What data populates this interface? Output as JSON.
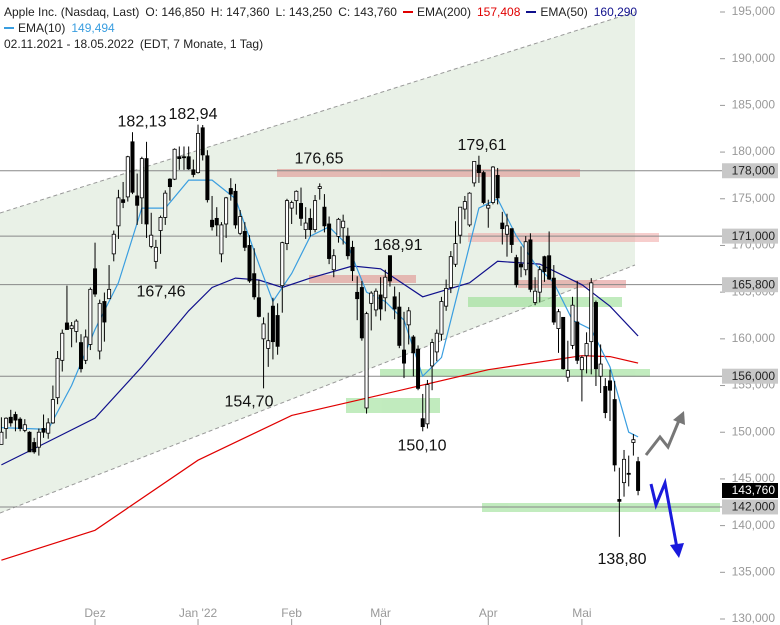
{
  "chart_data": {
    "type": "candlestick",
    "title": "Apple Inc. (Nasdaq, Last)",
    "ohlc_text": [
      "O: 146,850",
      "H: 147,360",
      "L: 143,250",
      "C: 143,760"
    ],
    "subtitle": "02.11.2021 - 18.05.2022",
    "info": "(EDT, 7 Monate, 1 Tag)",
    "xlim": [
      -0.3,
      153.5
    ],
    "xticks": [
      {
        "value": 20,
        "label": "Dez"
      },
      {
        "value": 42,
        "label": "Jan '22"
      },
      {
        "value": 62,
        "label": "Feb"
      },
      {
        "value": 81,
        "label": "Mär"
      },
      {
        "value": 104,
        "label": "Apr"
      },
      {
        "value": 124,
        "label": "Mai"
      }
    ],
    "ylim": [
      130,
      195
    ],
    "yticks": [
      {
        "value": 130,
        "label": "130,000"
      },
      {
        "value": 135,
        "label": "135,000"
      },
      {
        "value": 140,
        "label": "140,000"
      },
      {
        "value": 145,
        "label": "145,000"
      },
      {
        "value": 150,
        "label": "150,000"
      },
      {
        "value": 155,
        "label": "155,000"
      },
      {
        "value": 160,
        "label": "160,000"
      },
      {
        "value": 165,
        "label": "165,000"
      },
      {
        "value": 170,
        "label": "170,000"
      },
      {
        "value": 175,
        "label": "175,000"
      },
      {
        "value": 180,
        "label": "180,000"
      },
      {
        "value": 185,
        "label": "185,000"
      },
      {
        "value": 190,
        "label": "190,000"
      },
      {
        "value": 195,
        "label": "195,000"
      }
    ],
    "levels": [
      {
        "value": 178,
        "label": "178,000"
      },
      {
        "value": 171,
        "label": "171,000"
      },
      {
        "value": 165.8,
        "label": "165,800"
      },
      {
        "value": 156,
        "label": "156,000"
      },
      {
        "value": 142,
        "label": "142,000"
      }
    ],
    "last_price": {
      "value": 143.76,
      "label": "143,760"
    },
    "annotations": [
      {
        "value": 182.13,
        "label": "182,13"
      },
      {
        "value": 182.94,
        "label": "182,94"
      },
      {
        "value": 176.65,
        "label": "176,65"
      },
      {
        "value": 179.61,
        "label": "179,61"
      },
      {
        "value": 168.91,
        "label": "168,91"
      },
      {
        "value": 167.46,
        "label": "167,46"
      },
      {
        "value": 154.7,
        "label": "154,70"
      },
      {
        "value": 150.1,
        "label": "150,10"
      },
      {
        "value": 138.8,
        "label": "138,80"
      }
    ],
    "series": [
      {
        "name": "EMA(200)",
        "color": "#e00000",
        "last": "157,408",
        "x": [
          0,
          20,
          42,
          62,
          81,
          104,
          124,
          130,
          136
        ],
        "values": [
          136.3,
          139.5,
          147,
          151.8,
          154,
          156.7,
          158.2,
          158.1,
          157.4
        ]
      },
      {
        "name": "EMA(50)",
        "color": "#10108c",
        "last": "160,290",
        "x": [
          0,
          10,
          20,
          30,
          40,
          45,
          50,
          55,
          60,
          66,
          75,
          81,
          90,
          100,
          106,
          115,
          124,
          130,
          136
        ],
        "values": [
          146.5,
          149,
          151.5,
          157,
          163,
          165.5,
          166.5,
          166.3,
          165.5,
          166.5,
          167.8,
          167.5,
          164.5,
          166,
          168.3,
          168,
          165.8,
          163.5,
          160.3
        ]
      },
      {
        "name": "EMA(10)",
        "color": "#3a9ee0",
        "last": "149,494",
        "x": [
          0,
          10,
          15,
          20,
          25,
          30,
          35,
          40,
          45,
          50,
          55,
          58,
          62,
          66,
          70,
          74,
          78,
          82,
          86,
          90,
          94,
          98,
          102,
          106,
          110,
          114,
          118,
          122,
          126,
          130,
          134,
          136
        ],
        "values": [
          150.5,
          150.3,
          155,
          161,
          166,
          174,
          174,
          177,
          177,
          175,
          168,
          164,
          167,
          171,
          172,
          170,
          165,
          164,
          162,
          156,
          158,
          166,
          174,
          175,
          171,
          168,
          166,
          162,
          161,
          157,
          150,
          149.5
        ]
      }
    ],
    "candles": [
      [
        148.7,
        151.6,
        148.7,
        150.0
      ],
      [
        150.4,
        151.6,
        149.3,
        151.5
      ],
      [
        151.6,
        152.4,
        150.6,
        151.0
      ],
      [
        151.9,
        152.2,
        150.1,
        151.3
      ],
      [
        151.4,
        151.6,
        150.1,
        150.4
      ],
      [
        150.2,
        151.4,
        150.0,
        150.8
      ],
      [
        150.0,
        150.1,
        147.9,
        147.9
      ],
      [
        148.9,
        149.4,
        147.7,
        147.9
      ],
      [
        148.4,
        150.4,
        147.5,
        150.0
      ],
      [
        150.4,
        151.9,
        149.4,
        150.0
      ],
      [
        149.9,
        151.5,
        149.3,
        151.0
      ],
      [
        151.0,
        155.0,
        150.9,
        153.5
      ],
      [
        153.7,
        158.7,
        153.0,
        157.9
      ],
      [
        157.7,
        161.0,
        156.5,
        160.6
      ],
      [
        161.7,
        165.7,
        161.0,
        161.0
      ],
      [
        161.1,
        161.8,
        159.1,
        161.4
      ],
      [
        160.8,
        162.1,
        159.6,
        161.9
      ],
      [
        159.6,
        160.5,
        156.4,
        156.8
      ],
      [
        157.7,
        161.0,
        157.3,
        160.2
      ],
      [
        159.4,
        165.5,
        158.8,
        165.3
      ],
      [
        167.5,
        170.3,
        164.5,
        164.8
      ],
      [
        158.7,
        164.2,
        157.8,
        163.8
      ],
      [
        164.0,
        164.96,
        159.7,
        161.8
      ],
      [
        164.3,
        167.9,
        164.3,
        165.3
      ],
      [
        169.1,
        171.6,
        168.3,
        171.2
      ],
      [
        172.1,
        175.96,
        170.7,
        175.1
      ],
      [
        174.9,
        176.8,
        174.0,
        174.6
      ],
      [
        175.2,
        179.6,
        174.7,
        179.5
      ],
      [
        181.1,
        182.13,
        175.5,
        175.7
      ],
      [
        175.3,
        177.7,
        172.2,
        174.3
      ],
      [
        175.1,
        179.5,
        172.3,
        179.3
      ],
      [
        179.3,
        181.1,
        170.8,
        172.3
      ],
      [
        169.9,
        173.5,
        169.7,
        171.1
      ],
      [
        168.3,
        170.6,
        167.5,
        169.8
      ],
      [
        171.6,
        173.2,
        169.1,
        173.0
      ],
      [
        173.0,
        175.9,
        172.2,
        175.6
      ],
      [
        177.1,
        177.2,
        174.8,
        176.3
      ],
      [
        177.1,
        180.4,
        177.0,
        180.3
      ],
      [
        179.5,
        180.6,
        178.1,
        179.3
      ],
      [
        179.5,
        180.6,
        178.1,
        179.4
      ],
      [
        179.5,
        180.6,
        178.1,
        178.2
      ],
      [
        178.1,
        179.2,
        177.3,
        177.6
      ],
      [
        177.8,
        182.94,
        177.7,
        182.0
      ],
      [
        182.6,
        182.9,
        179.1,
        179.7
      ],
      [
        179.6,
        180.2,
        174.6,
        174.9
      ],
      [
        172.7,
        175.3,
        171.6,
        172.0
      ],
      [
        172.9,
        174.1,
        171.0,
        172.2
      ],
      [
        169.1,
        172.5,
        168.2,
        172.2
      ],
      [
        172.3,
        175.2,
        170.8,
        175.1
      ],
      [
        176.1,
        177.2,
        174.8,
        175.5
      ],
      [
        175.8,
        176.6,
        171.8,
        172.2
      ],
      [
        171.3,
        173.8,
        171.1,
        173.1
      ],
      [
        171.5,
        172.5,
        169.4,
        169.8
      ],
      [
        170.0,
        171.1,
        166.0,
        166.2
      ],
      [
        166.98,
        169.7,
        164.2,
        164.5
      ],
      [
        164.4,
        166.3,
        162.3,
        162.4
      ],
      [
        160.0,
        162.3,
        154.7,
        161.6
      ],
      [
        158.98,
        162.8,
        157.0,
        159.8
      ],
      [
        163.5,
        164.4,
        157.8,
        159.7
      ],
      [
        162.5,
        163.8,
        158.3,
        159.2
      ],
      [
        165.7,
        170.4,
        162.8,
        170.3
      ],
      [
        170.2,
        175.0,
        169.5,
        174.8
      ],
      [
        174.0,
        174.8,
        172.3,
        174.6
      ],
      [
        174.8,
        175.9,
        173.3,
        175.8
      ],
      [
        174.5,
        176.2,
        172.1,
        172.9
      ],
      [
        171.7,
        174.1,
        170.7,
        172.4
      ],
      [
        172.9,
        173.95,
        170.95,
        171.7
      ],
      [
        171.7,
        175.4,
        171.4,
        174.8
      ],
      [
        176.1,
        176.65,
        174.9,
        176.3
      ],
      [
        174.1,
        175.5,
        171.4,
        172.1
      ],
      [
        172.3,
        173.1,
        168.0,
        168.6
      ],
      [
        167.4,
        169.6,
        166.6,
        168.9
      ],
      [
        170.97,
        172.95,
        170.3,
        172.8
      ],
      [
        171.9,
        173.3,
        170.1,
        172.6
      ],
      [
        171.0,
        171.9,
        168.5,
        168.9
      ],
      [
        169.8,
        170.5,
        166.2,
        167.3
      ],
      [
        164.98,
        166.7,
        162.0,
        164.3
      ],
      [
        165.5,
        166.2,
        159.8,
        160.1
      ],
      [
        152.6,
        162.9,
        152.0,
        162.7
      ],
      [
        163.8,
        165.1,
        160.9,
        164.9
      ],
      [
        163.1,
        165.4,
        162.4,
        165.1
      ],
      [
        164.7,
        166.6,
        161.97,
        163.2
      ],
      [
        164.4,
        167.4,
        162.95,
        166.6
      ],
      [
        168.91,
        168.91,
        165.6,
        166.2
      ],
      [
        164.5,
        165.6,
        162.1,
        163.2
      ],
      [
        163.4,
        165.0,
        159.0,
        159.3
      ],
      [
        158.8,
        162.9,
        155.8,
        157.4
      ],
      [
        161.5,
        163.4,
        159.4,
        163.0
      ],
      [
        160.2,
        160.4,
        155.98,
        158.5
      ],
      [
        158.9,
        159.3,
        154.5,
        154.7
      ],
      [
        151.45,
        154.1,
        150.1,
        150.6
      ],
      [
        150.9,
        155.6,
        150.4,
        155.1
      ],
      [
        157.1,
        160.0,
        154.5,
        159.6
      ],
      [
        158.6,
        161.0,
        157.6,
        160.6
      ],
      [
        160.5,
        164.5,
        159.8,
        164.0
      ],
      [
        163.5,
        166.35,
        163.0,
        165.4
      ],
      [
        165.5,
        169.4,
        164.9,
        168.8
      ],
      [
        167.99,
        172.6,
        167.7,
        170.2
      ],
      [
        171.1,
        174.1,
        170.2,
        174.1
      ],
      [
        173.9,
        175.3,
        172.8,
        174.7
      ],
      [
        172.2,
        175.7,
        172.0,
        175.6
      ],
      [
        176.7,
        179.0,
        176.3,
        179.0
      ],
      [
        178.6,
        179.61,
        176.7,
        177.8
      ],
      [
        177.8,
        178.0,
        174.4,
        174.6
      ],
      [
        174.0,
        174.9,
        171.9,
        174.3
      ],
      [
        174.6,
        178.5,
        174.4,
        178.4
      ],
      [
        177.5,
        178.3,
        174.4,
        175.1
      ],
      [
        172.4,
        173.6,
        170.1,
        171.8
      ],
      [
        171.2,
        173.4,
        168.8,
        172.1
      ],
      [
        171.8,
        171.8,
        169.2,
        170.1
      ],
      [
        168.7,
        169.0,
        165.5,
        165.8
      ],
      [
        168.0,
        169.9,
        166.6,
        167.7
      ],
      [
        167.4,
        171.0,
        166.8,
        170.4
      ],
      [
        170.6,
        171.3,
        165.0,
        165.3
      ],
      [
        163.9,
        166.6,
        163.6,
        165.1
      ],
      [
        165.0,
        167.8,
        163.9,
        167.4
      ],
      [
        168.8,
        168.9,
        166.1,
        167.2
      ],
      [
        168.9,
        171.5,
        166.3,
        166.4
      ],
      [
        166.5,
        167.9,
        161.5,
        161.8
      ],
      [
        161.1,
        163.2,
        158.5,
        162.9
      ],
      [
        162.3,
        162.3,
        156.7,
        156.8
      ],
      [
        155.9,
        159.8,
        155.4,
        156.6
      ],
      [
        159.3,
        164.5,
        158.9,
        163.6
      ],
      [
        161.8,
        166.2,
        157.3,
        157.7
      ],
      [
        156.7,
        158.2,
        153.3,
        158.0
      ],
      [
        158.2,
        160.7,
        156.3,
        159.5
      ],
      [
        159.7,
        166.5,
        156.2,
        166.0
      ],
      [
        163.9,
        164.1,
        154.95,
        156.8
      ],
      [
        156.0,
        159.4,
        154.2,
        157.3
      ],
      [
        154.9,
        155.8,
        151.5,
        152.1
      ],
      [
        155.5,
        156.7,
        151.2,
        154.5
      ],
      [
        153.5,
        155.5,
        145.8,
        146.5
      ],
      [
        142.8,
        146.2,
        138.8,
        142.6
      ],
      [
        144.6,
        148.1,
        143.1,
        147.1
      ],
      [
        145.6,
        147.5,
        144.2,
        145.5
      ],
      [
        148.9,
        149.8,
        147.5,
        149.2
      ],
      [
        146.85,
        147.36,
        143.25,
        143.76
      ]
    ]
  }
}
